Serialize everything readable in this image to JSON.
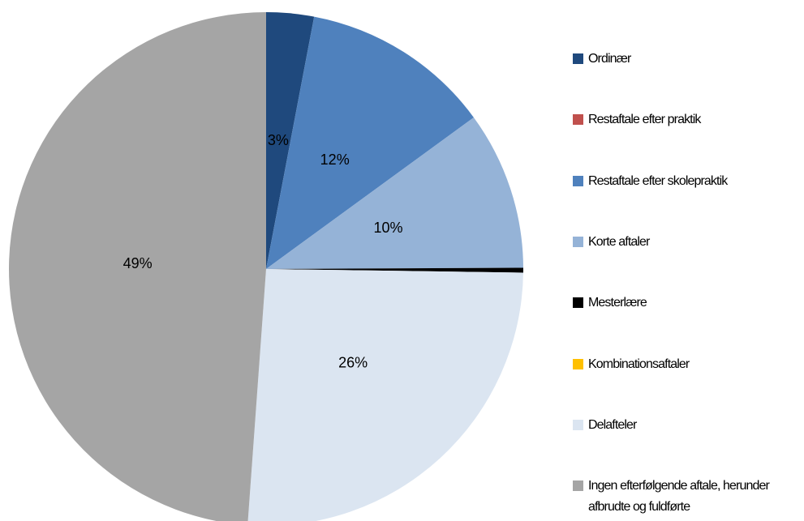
{
  "chart_data": {
    "type": "pie",
    "categories": [
      "Ordinær",
      "Restaftale efter praktik",
      "Restaftale efter skolepraktik",
      "Korte aftaler",
      "Mesterlære",
      "Kombinationsaftaler",
      "Delafteler",
      "Ingen efterfølgende aftale, herunder afbrudte og fuldførte"
    ],
    "values": [
      3,
      0,
      12,
      10,
      0.3,
      0,
      26,
      49
    ],
    "value_labels": [
      "3%",
      null,
      "12%",
      "10%",
      null,
      null,
      "26%",
      "49%"
    ],
    "colors": [
      "#1f497d",
      "#c0504d",
      "#4f81bd",
      "#95b3d7",
      "#000000",
      "#ffc000",
      "#dbe5f1",
      "#a5a5a5"
    ],
    "legend": "right"
  }
}
